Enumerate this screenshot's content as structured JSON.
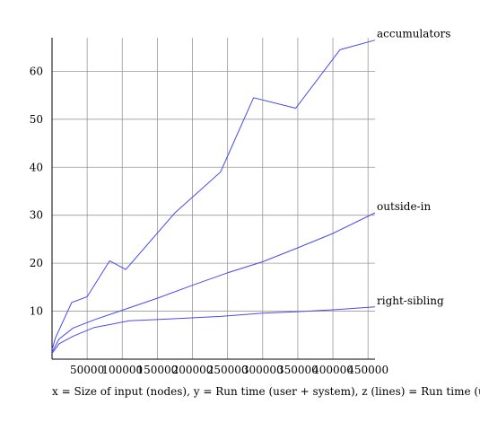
{
  "chart_data": {
    "type": "line",
    "title": "",
    "xlabel": "",
    "ylabel": "",
    "caption": "x = Size of input (nodes), y = Run time (user + system), z (lines) = Run time (user + system)",
    "xlim": [
      0,
      460000
    ],
    "ylim": [
      0,
      67
    ],
    "x_ticks": [
      50000,
      100000,
      150000,
      200000,
      250000,
      300000,
      350000,
      400000,
      450000
    ],
    "y_ticks": [
      10,
      20,
      30,
      40,
      50,
      60
    ],
    "x_tick_labels": [
      "50000",
      "100000",
      "150000",
      "200000",
      "250000",
      "300000",
      "350000",
      "400000",
      "450000"
    ],
    "y_tick_labels": [
      "10",
      "20",
      "30",
      "40",
      "50",
      "60"
    ],
    "grid": true,
    "legend": "labels at line ends",
    "line_color": "#4a4aee",
    "grid_color": "#999999",
    "series": [
      {
        "name": "accumulators",
        "x": [
          0,
          5000,
          28000,
          50000,
          82000,
          105000,
          175000,
          240000,
          287000,
          347000,
          410000,
          460000
        ],
        "y": [
          2,
          4.5,
          11.8,
          13,
          20.5,
          18.7,
          30.5,
          39,
          54.5,
          52.3,
          64.5,
          66.5
        ]
      },
      {
        "name": "outside-in",
        "x": [
          0,
          10000,
          30000,
          60000,
          100000,
          150000,
          200000,
          250000,
          300000,
          350000,
          400000,
          460000
        ],
        "y": [
          1.5,
          4.2,
          6.5,
          8.2,
          10.2,
          12.7,
          15.4,
          18,
          20.3,
          23.2,
          26.2,
          30.5
        ]
      },
      {
        "name": "right-sibling",
        "x": [
          0,
          10000,
          30000,
          60000,
          110000,
          170000,
          240000,
          300000,
          350000,
          400000,
          460000
        ],
        "y": [
          1.2,
          3.2,
          4.8,
          6.6,
          8,
          8.4,
          8.9,
          9.6,
          9.9,
          10.3,
          10.9
        ]
      }
    ]
  }
}
